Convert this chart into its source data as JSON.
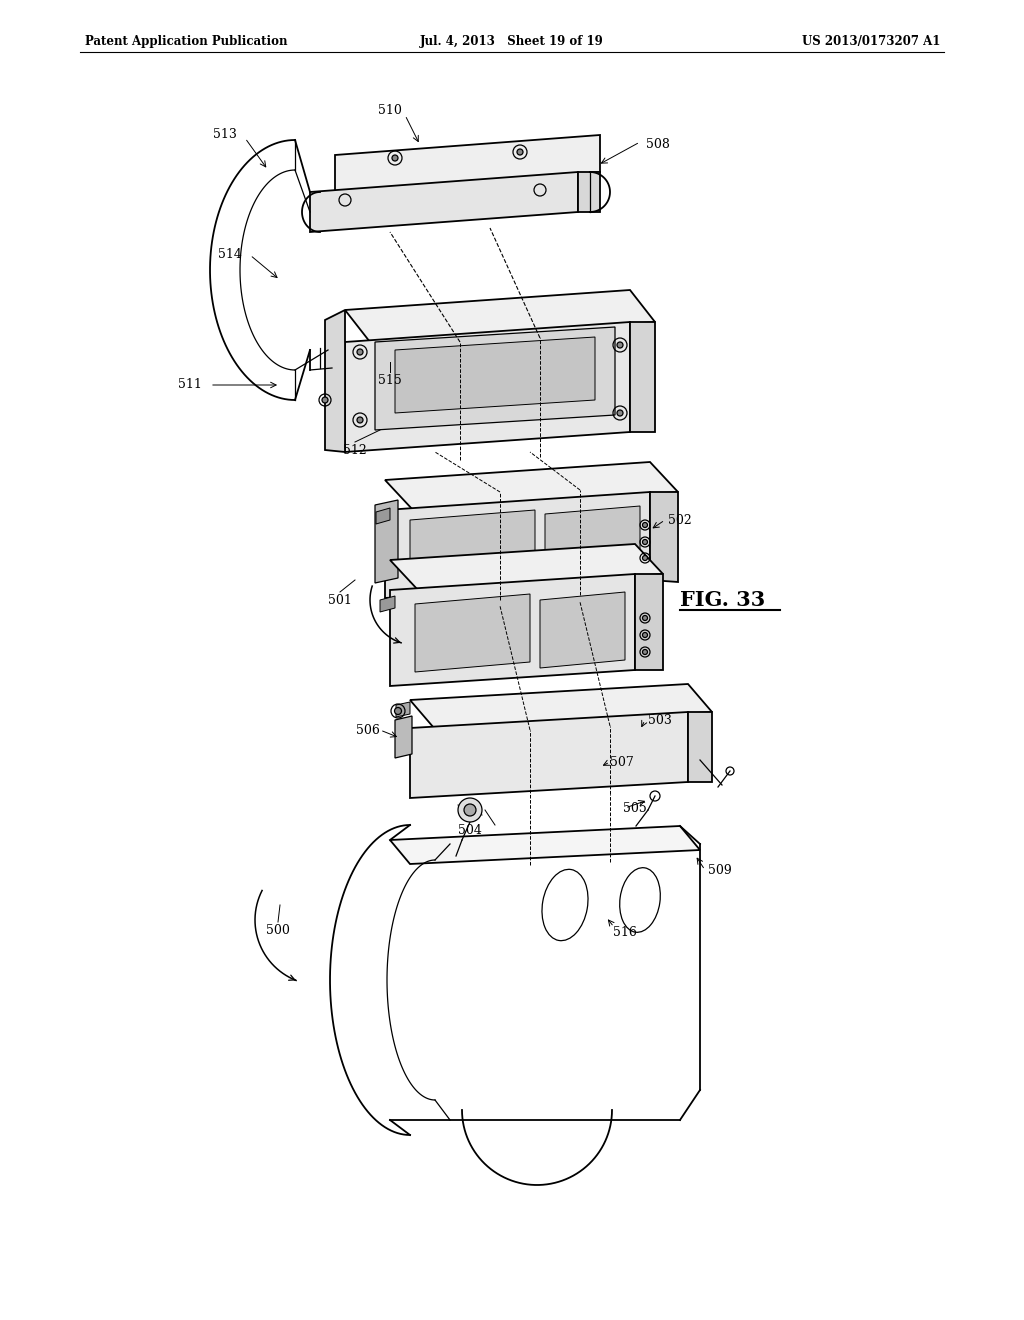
{
  "header_left": "Patent Application Publication",
  "header_mid": "Jul. 4, 2013   Sheet 19 of 19",
  "header_right": "US 2013/0173207 A1",
  "fig_label": "FIG. 33",
  "bg_color": "#ffffff"
}
